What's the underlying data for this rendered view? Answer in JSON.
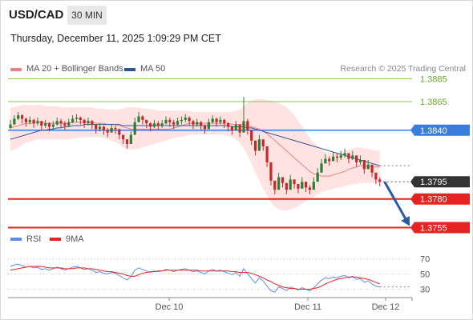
{
  "header": {
    "pair": "USD/CAD",
    "timeframe": "30 MIN",
    "timestamp": "Thursday, December 11, 2025 1:09:29 PM CET"
  },
  "legend": {
    "ma20": "MA 20 + Bollinger Bands",
    "ma50": "MA 50",
    "credit": "Research © 2025 Trading Central",
    "rsi": "RSI",
    "rsi_ma": "9MA"
  },
  "colors": {
    "ma20": "#f08080",
    "ma50": "#2f5597",
    "bollinger_fill": "#ffe3e3",
    "bullish": "#2e7d32",
    "bearish": "#c62828",
    "resistance": "#8bc34a",
    "pivot": "#3b7ddd",
    "support": "#e52421",
    "current": "#333333",
    "arrow": "#2a5aa0",
    "rsi": "#5b8def",
    "rsi_ma": "#e52421"
  },
  "chart_data": [
    {
      "type": "line",
      "title": "USD/CAD 30 MIN",
      "x_ticks": [
        "Dec 10",
        "Dec 11",
        "Dec 12"
      ],
      "ylim": [
        1.374,
        1.3895
      ],
      "levels": [
        {
          "name": "resistance-2",
          "value": 1.3885,
          "label": "1.3885",
          "kind": "resistance"
        },
        {
          "name": "resistance-1",
          "value": 1.3865,
          "label": "1.3865",
          "kind": "resistance"
        },
        {
          "name": "pivot",
          "value": 1.384,
          "label": "1.3840",
          "kind": "pivot"
        },
        {
          "name": "current",
          "value": 1.3795,
          "label": "1.3795",
          "kind": "current"
        },
        {
          "name": "support-1",
          "value": 1.378,
          "label": "1.3780",
          "kind": "support"
        },
        {
          "name": "support-2",
          "value": 1.3755,
          "label": "1.3755",
          "kind": "support"
        }
      ],
      "close": [
        1.3845,
        1.385,
        1.3853,
        1.385,
        1.3847,
        1.3849,
        1.3846,
        1.3848,
        1.3844,
        1.3846,
        1.3843,
        1.3845,
        1.3848,
        1.3846,
        1.3844,
        1.3847,
        1.385,
        1.3851,
        1.3849,
        1.3846,
        1.3848,
        1.3845,
        1.3841,
        1.3843,
        1.384,
        1.3838,
        1.3842,
        1.3841,
        1.3836,
        1.3832,
        1.3828,
        1.3836,
        1.3847,
        1.3852,
        1.3849,
        1.3846,
        1.3843,
        1.3846,
        1.3844,
        1.3846,
        1.3849,
        1.3847,
        1.3845,
        1.3848,
        1.3849,
        1.3851,
        1.3848,
        1.3845,
        1.3847,
        1.3844,
        1.3841,
        1.3847,
        1.385,
        1.3847,
        1.3849,
        1.3846,
        1.3843,
        1.384,
        1.3845,
        1.3838,
        1.3848,
        1.384,
        1.3831,
        1.3822,
        1.3832,
        1.3826,
        1.3812,
        1.3796,
        1.3788,
        1.3799,
        1.3794,
        1.3788,
        1.3797,
        1.3793,
        1.3789,
        1.3795,
        1.379,
        1.3788,
        1.3795,
        1.3803,
        1.3811,
        1.3815,
        1.3813,
        1.3817,
        1.3816,
        1.3818,
        1.382,
        1.3815,
        1.3818,
        1.3812,
        1.3814,
        1.3806,
        1.381,
        1.3803,
        1.3797,
        1.3795
      ],
      "high": [
        1.3849,
        1.3853,
        1.3856,
        1.3854,
        1.3851,
        1.3852,
        1.385,
        1.3851,
        1.3848,
        1.3849,
        1.3847,
        1.3848,
        1.3851,
        1.385,
        1.3848,
        1.385,
        1.3853,
        1.3854,
        1.3852,
        1.385,
        1.3851,
        1.3849,
        1.3845,
        1.3846,
        1.3844,
        1.3842,
        1.3845,
        1.3844,
        1.384,
        1.3836,
        1.3832,
        1.3839,
        1.3851,
        1.3856,
        1.3853,
        1.3849,
        1.3847,
        1.3849,
        1.3848,
        1.3849,
        1.3852,
        1.3851,
        1.3849,
        1.3851,
        1.3852,
        1.3854,
        1.3852,
        1.3849,
        1.385,
        1.3848,
        1.3845,
        1.385,
        1.3853,
        1.3851,
        1.3852,
        1.385,
        1.3847,
        1.3844,
        1.3848,
        1.3842,
        1.3869,
        1.385,
        1.3835,
        1.3826,
        1.3836,
        1.383,
        1.3816,
        1.38,
        1.3792,
        1.3803,
        1.3798,
        1.3792,
        1.3801,
        1.3797,
        1.3793,
        1.3799,
        1.3794,
        1.3792,
        1.3799,
        1.3807,
        1.3815,
        1.3819,
        1.3817,
        1.3821,
        1.382,
        1.3822,
        1.3824,
        1.3819,
        1.3822,
        1.3816,
        1.3818,
        1.381,
        1.3814,
        1.3807,
        1.3801,
        1.3799
      ],
      "low": [
        1.3841,
        1.3845,
        1.3849,
        1.3846,
        1.3843,
        1.3845,
        1.3842,
        1.3844,
        1.384,
        1.3842,
        1.3839,
        1.3841,
        1.3844,
        1.3842,
        1.384,
        1.3843,
        1.3846,
        1.3847,
        1.3845,
        1.3842,
        1.3844,
        1.3841,
        1.3837,
        1.3839,
        1.3836,
        1.3834,
        1.3838,
        1.3837,
        1.3832,
        1.3828,
        1.3824,
        1.3832,
        1.3843,
        1.3848,
        1.3845,
        1.3842,
        1.3839,
        1.3842,
        1.384,
        1.3842,
        1.3845,
        1.3843,
        1.3841,
        1.3844,
        1.3845,
        1.3847,
        1.3844,
        1.3841,
        1.3843,
        1.384,
        1.3837,
        1.3843,
        1.3846,
        1.3843,
        1.3845,
        1.3842,
        1.3839,
        1.3836,
        1.3841,
        1.3834,
        1.3844,
        1.3836,
        1.3827,
        1.3818,
        1.3828,
        1.3822,
        1.3808,
        1.3792,
        1.3784,
        1.3795,
        1.379,
        1.3784,
        1.3793,
        1.3789,
        1.3785,
        1.3791,
        1.3786,
        1.3784,
        1.3791,
        1.3799,
        1.3807,
        1.3811,
        1.3809,
        1.3813,
        1.3812,
        1.3814,
        1.3816,
        1.3811,
        1.3814,
        1.3808,
        1.381,
        1.3802,
        1.3806,
        1.3799,
        1.3793,
        1.3791
      ],
      "ma20": [
        1.3842,
        1.3843,
        1.3844,
        1.3845,
        1.3846,
        1.3846,
        1.3846,
        1.3847,
        1.3847,
        1.3846,
        1.3846,
        1.3846,
        1.3846,
        1.3846,
        1.3846,
        1.3846,
        1.3847,
        1.3847,
        1.3847,
        1.3847,
        1.3847,
        1.3847,
        1.3846,
        1.3846,
        1.3846,
        1.3845,
        1.3845,
        1.3845,
        1.3844,
        1.3843,
        1.3842,
        1.3841,
        1.3841,
        1.3841,
        1.3841,
        1.3841,
        1.3841,
        1.3841,
        1.3841,
        1.3841,
        1.3841,
        1.3841,
        1.3842,
        1.3843,
        1.3844,
        1.3845,
        1.3846,
        1.3846,
        1.3846,
        1.3846,
        1.3846,
        1.3846,
        1.3846,
        1.3846,
        1.3846,
        1.3846,
        1.3846,
        1.3845,
        1.3845,
        1.3845,
        1.3845,
        1.3844,
        1.3843,
        1.3842,
        1.3841,
        1.3839,
        1.3837,
        1.3834,
        1.3831,
        1.3828,
        1.3825,
        1.3822,
        1.3819,
        1.3816,
        1.3813,
        1.381,
        1.3807,
        1.3804,
        1.3802,
        1.3801,
        1.38,
        1.38,
        1.38,
        1.3801,
        1.3802,
        1.3803,
        1.3804,
        1.3806,
        1.3807,
        1.3808,
        1.3809,
        1.3809,
        1.3809,
        1.3808,
        1.3808,
        1.3808
      ],
      "ma50": [
        1.3832,
        1.3833,
        1.3834,
        1.3835,
        1.3836,
        1.3837,
        1.3838,
        1.3839,
        1.384,
        1.384,
        1.3841,
        1.3841,
        1.3842,
        1.3842,
        1.3843,
        1.3843,
        1.3844,
        1.3844,
        1.3844,
        1.3845,
        1.3845,
        1.3845,
        1.3845,
        1.3845,
        1.3845,
        1.3845,
        1.3845,
        1.3845,
        1.3845,
        1.3844,
        1.3844,
        1.3844,
        1.3844,
        1.3844,
        1.3844,
        1.3844,
        1.3844,
        1.3844,
        1.3844,
        1.3844,
        1.3844,
        1.3844,
        1.3844,
        1.3844,
        1.3844,
        1.3844,
        1.3844,
        1.3844,
        1.3844,
        1.3844,
        1.3844,
        1.3844,
        1.3844,
        1.3844,
        1.3844,
        1.3844,
        1.3844,
        1.3843,
        1.3843,
        1.3843,
        1.3843,
        1.3842,
        1.3842,
        1.3841,
        1.384,
        1.3839,
        1.3838,
        1.3837,
        1.3836,
        1.3835,
        1.3834,
        1.3833,
        1.3832,
        1.3831,
        1.383,
        1.3829,
        1.3828,
        1.3827,
        1.3826,
        1.3825,
        1.3824,
        1.3823,
        1.3822,
        1.3821,
        1.382,
        1.3819,
        1.3818,
        1.3817,
        1.3816,
        1.3815,
        1.3814,
        1.3813,
        1.3812,
        1.3811,
        1.381,
        1.3809
      ],
      "bb_upper": [
        1.386,
        1.386,
        1.3861,
        1.3862,
        1.3862,
        1.3862,
        1.3862,
        1.3862,
        1.3862,
        1.3861,
        1.3861,
        1.3861,
        1.3861,
        1.386,
        1.386,
        1.386,
        1.386,
        1.386,
        1.386,
        1.386,
        1.386,
        1.386,
        1.3859,
        1.3859,
        1.3859,
        1.3858,
        1.3858,
        1.3858,
        1.3858,
        1.3859,
        1.386,
        1.386,
        1.386,
        1.386,
        1.3859,
        1.3859,
        1.3858,
        1.3858,
        1.3857,
        1.3857,
        1.3857,
        1.3857,
        1.3857,
        1.3857,
        1.3857,
        1.3857,
        1.3857,
        1.3856,
        1.3856,
        1.3856,
        1.3856,
        1.3856,
        1.3856,
        1.3856,
        1.3856,
        1.3856,
        1.3856,
        1.3856,
        1.3857,
        1.3858,
        1.3861,
        1.3864,
        1.3866,
        1.3867,
        1.3867,
        1.3867,
        1.3866,
        1.3866,
        1.3865,
        1.3864,
        1.3862,
        1.386,
        1.3857,
        1.3853,
        1.3848,
        1.3843,
        1.3838,
        1.3833,
        1.3829,
        1.3826,
        1.3823,
        1.3821,
        1.382,
        1.382,
        1.382,
        1.3821,
        1.3822,
        1.3823,
        1.3824,
        1.3825,
        1.3825,
        1.3824,
        1.3824,
        1.3823,
        1.3822,
        1.3822
      ],
      "bb_lower": [
        1.3822,
        1.3823,
        1.3825,
        1.3827,
        1.3829,
        1.383,
        1.3831,
        1.3832,
        1.3832,
        1.3832,
        1.3832,
        1.3832,
        1.3832,
        1.3832,
        1.3832,
        1.3832,
        1.3833,
        1.3833,
        1.3834,
        1.3834,
        1.3834,
        1.3834,
        1.3834,
        1.3834,
        1.3833,
        1.3832,
        1.3831,
        1.383,
        1.3828,
        1.3825,
        1.3824,
        1.3823,
        1.3823,
        1.3824,
        1.3825,
        1.3826,
        1.3827,
        1.3828,
        1.3829,
        1.383,
        1.3831,
        1.3832,
        1.3833,
        1.3834,
        1.3834,
        1.3835,
        1.3836,
        1.3836,
        1.3836,
        1.3836,
        1.3836,
        1.3836,
        1.3836,
        1.3836,
        1.3836,
        1.3836,
        1.3835,
        1.3834,
        1.3832,
        1.3829,
        1.3824,
        1.3818,
        1.3811,
        1.3803,
        1.3796,
        1.3789,
        1.3783,
        1.3777,
        1.3773,
        1.3771,
        1.377,
        1.377,
        1.3771,
        1.3772,
        1.3774,
        1.3776,
        1.3778,
        1.378,
        1.3782,
        1.3784,
        1.3786,
        1.3787,
        1.3788,
        1.3789,
        1.379,
        1.379,
        1.3791,
        1.3792,
        1.3793,
        1.3793,
        1.3794,
        1.3794,
        1.3794,
        1.3794,
        1.3794,
        1.3794
      ]
    },
    {
      "type": "line",
      "title": "RSI",
      "y_ticks": [
        70,
        50,
        30
      ],
      "ylim": [
        20,
        80
      ],
      "rsi": [
        60,
        62,
        63,
        61,
        59,
        60,
        58,
        59,
        56,
        57,
        55,
        57,
        59,
        57,
        55,
        57,
        59,
        60,
        58,
        56,
        57,
        55,
        52,
        53,
        51,
        50,
        52,
        51,
        48,
        45,
        42,
        47,
        55,
        58,
        56,
        54,
        52,
        54,
        53,
        54,
        56,
        55,
        53,
        55,
        56,
        57,
        55,
        53,
        54,
        52,
        50,
        54,
        56,
        54,
        55,
        53,
        51,
        49,
        52,
        47,
        57,
        50,
        44,
        38,
        45,
        41,
        34,
        28,
        26,
        33,
        31,
        28,
        33,
        31,
        29,
        32,
        30,
        28,
        32,
        37,
        42,
        45,
        44,
        46,
        45,
        47,
        48,
        45,
        47,
        43,
        44,
        39,
        41,
        37,
        34,
        33
      ],
      "rsi_ma": [
        55,
        56,
        57,
        58,
        59,
        60,
        60,
        60,
        60,
        59,
        58,
        58,
        58,
        58,
        57,
        57,
        57,
        58,
        58,
        58,
        57,
        57,
        56,
        55,
        54,
        53,
        53,
        52,
        51,
        50,
        48,
        47,
        47,
        49,
        51,
        52,
        53,
        53,
        54,
        54,
        55,
        55,
        55,
        55,
        55,
        55,
        55,
        55,
        55,
        54,
        54,
        54,
        54,
        54,
        54,
        54,
        54,
        53,
        53,
        52,
        52,
        52,
        51,
        49,
        47,
        45,
        42,
        40,
        37,
        35,
        33,
        32,
        31,
        31,
        30,
        30,
        30,
        30,
        31,
        32,
        34,
        37,
        39,
        41,
        43,
        44,
        45,
        46,
        46,
        46,
        45,
        44,
        43,
        41,
        39,
        37
      ]
    }
  ]
}
